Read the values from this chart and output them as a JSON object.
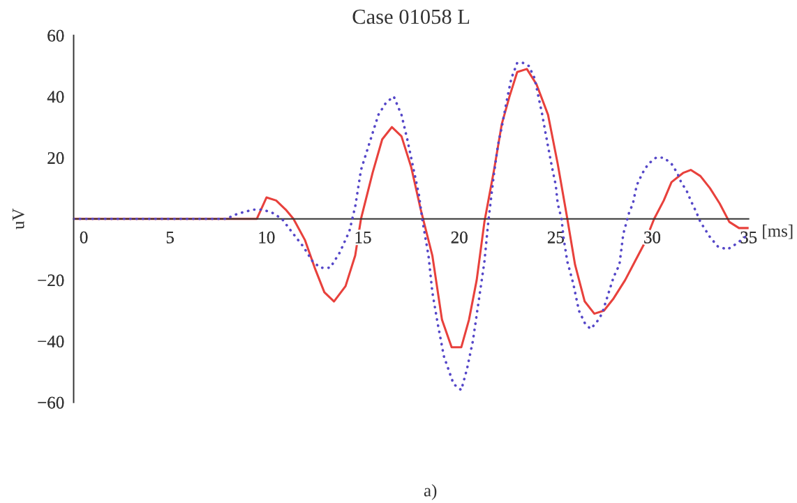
{
  "chart_data": {
    "type": "line",
    "title": "Case 01058 L",
    "xlabel": "[ms]",
    "ylabel": "uV",
    "annotations": [
      "a)"
    ],
    "xlim": [
      0,
      35
    ],
    "ylim": [
      -60,
      60
    ],
    "xticks": [
      0,
      5,
      10,
      15,
      20,
      25,
      30,
      35
    ],
    "yticks": [
      60,
      40,
      20,
      {
        "value": 0,
        "label": null
      },
      {
        "value": -20,
        "label": "−20"
      },
      {
        "value": -40,
        "label": "−40"
      },
      {
        "value": -60,
        "label": "−60"
      }
    ],
    "series": [
      {
        "color": "#e8413c",
        "line_style": "solid",
        "x": [
          0,
          9.5,
          10.0,
          10.5,
          11.0,
          11.4,
          12.0,
          12.5,
          13.0,
          13.5,
          14.1,
          14.6,
          14.9,
          15.5,
          16.0,
          16.5,
          17.0,
          17.5,
          18.0,
          18.6,
          19.1,
          19.6,
          20.1,
          20.5,
          20.9,
          21.3,
          21.8,
          22.2,
          22.6,
          23.0,
          23.5,
          24.0,
          24.6,
          25.1,
          25.6,
          26.0,
          26.5,
          27.0,
          27.5,
          28.0,
          28.6,
          29.1,
          29.6,
          30.1,
          30.6,
          31.0,
          31.6,
          32.0,
          32.5,
          33.0,
          33.5,
          34.0,
          34.5,
          35.0
        ],
        "values": [
          0,
          0,
          7,
          6,
          3,
          0,
          -7,
          -16,
          -24,
          -27,
          -22,
          -12,
          0,
          15,
          26,
          30,
          27,
          17,
          3,
          -12,
          -33,
          -42,
          -42,
          -33,
          -20,
          -1,
          16,
          31,
          40,
          48,
          49,
          44,
          34,
          18,
          0,
          -15,
          -27,
          -31,
          -30,
          -26,
          -20,
          -14,
          -8,
          0,
          6,
          12,
          15,
          16,
          14,
          10,
          5,
          -1,
          -3,
          -3
        ]
      },
      {
        "color": "#5547c8",
        "line_style": "dotted",
        "x": [
          0,
          8.0,
          8.2,
          8.7,
          9.3,
          9.8,
          10.3,
          10.8,
          11.4,
          11.9,
          12.4,
          12.8,
          13.3,
          13.8,
          14.3,
          14.6,
          14.9,
          15.4,
          15.8,
          16.2,
          16.6,
          17.0,
          17.3,
          17.6,
          17.9,
          18.1,
          18.4,
          18.6,
          18.9,
          19.2,
          19.7,
          20.1,
          20.4,
          20.7,
          21.0,
          21.3,
          21.5,
          21.8,
          22.0,
          22.2,
          22.5,
          22.7,
          23.0,
          23.3,
          23.6,
          23.9,
          24.1,
          24.3,
          24.5,
          24.8,
          25.0,
          25.1,
          25.3,
          25.4,
          25.6,
          25.9,
          26.2,
          26.5,
          26.8,
          27.1,
          27.4,
          27.7,
          28.0,
          28.3,
          28.5,
          28.8,
          29.0,
          29.2,
          29.5,
          29.8,
          30.2,
          30.6,
          31.0,
          31.3,
          31.5,
          31.8,
          32.0,
          32.3,
          32.5,
          32.7,
          33.0,
          33.4,
          33.9,
          34.4,
          34.8
        ],
        "values": [
          0,
          0,
          1,
          2,
          3,
          3,
          2,
          0,
          -5,
          -9,
          -14,
          -16,
          -16,
          -11,
          -4,
          4,
          16,
          26,
          34,
          38,
          40,
          34,
          26,
          17,
          8,
          -1,
          -12,
          -24,
          -35,
          -45,
          -54,
          -56,
          -49,
          -40,
          -27,
          -14,
          -1,
          15,
          24,
          30,
          40,
          46,
          51,
          51,
          50,
          46,
          40,
          34,
          27,
          17,
          11,
          5,
          0,
          -6,
          -14,
          -21,
          -30,
          -34,
          -36,
          -34,
          -31,
          -25,
          -19,
          -15,
          -5,
          2,
          5,
          11,
          15,
          18,
          20,
          20,
          18,
          15,
          12,
          9,
          6,
          2,
          -1,
          -3,
          -6,
          -9,
          -10,
          -8,
          -6
        ]
      }
    ]
  }
}
